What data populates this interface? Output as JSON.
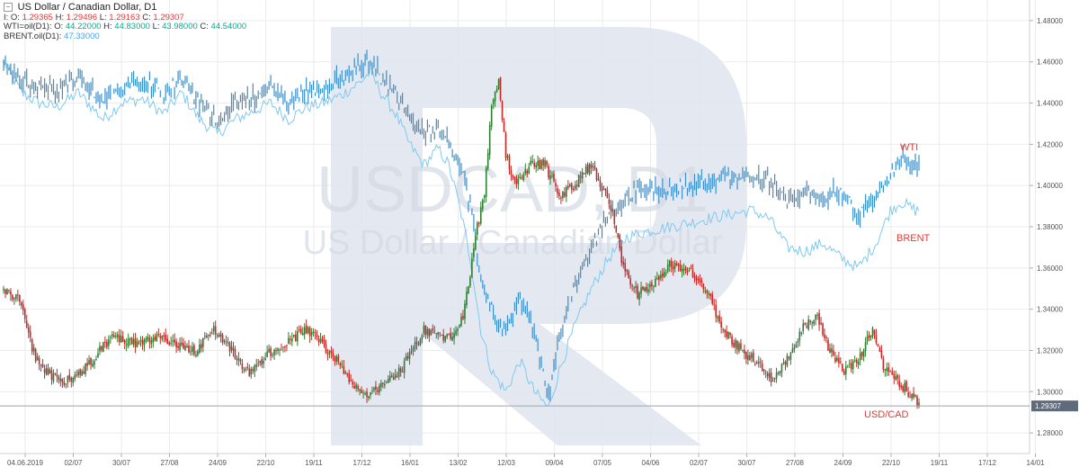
{
  "legend": {
    "collapse_symbol": "−",
    "title": "US Dollar / Canadian Dollar,  D1",
    "usdcad": {
      "o_label": "I: O:",
      "o": "1.29365",
      "h_label": "H:",
      "h": "1.29496",
      "l_label": "L:",
      "l": "1.29163",
      "c_label": "C:",
      "c": "1.29307"
    },
    "wti": {
      "name": "WTI=oil(D1):",
      "o_label": "O:",
      "o": "44.22000",
      "h_label": "H:",
      "h": "44.83000",
      "l_label": "L:",
      "l": "43.98000",
      "c_label": "C:",
      "c": "44.54000"
    },
    "brent": {
      "name": "BRENT.oil(D1):",
      "value": "47.33000"
    }
  },
  "watermark": {
    "symbol": "USDCAD, D1",
    "name": "US Dollar / Canadian Dollar"
  },
  "colors": {
    "bull": "#2e7d32",
    "bear": "#c62828",
    "wti": "#3c8fc9",
    "brent": "#7fc9f0",
    "label": "#e53935",
    "grid": "#ebebeb",
    "axis_text": "#555555",
    "watermark": "#dde3ee"
  },
  "chart_data": {
    "type": "candlestick",
    "title": "US Dollar / Canadian Dollar, D1",
    "ylim": [
      1.27,
      1.49
    ],
    "yticks": [
      "1.48000",
      "1.46000",
      "1.44000",
      "1.42000",
      "1.40000",
      "1.38000",
      "1.36000",
      "1.34000",
      "1.32000",
      "1.30000",
      "1.28000"
    ],
    "ytick_values": [
      1.48,
      1.46,
      1.44,
      1.42,
      1.4,
      1.38,
      1.36,
      1.34,
      1.32,
      1.3,
      1.28
    ],
    "xticks": [
      "04.06.2019",
      "02/07",
      "30/07",
      "27/08",
      "24/09",
      "22/10",
      "19/11",
      "17/12",
      "16/01",
      "13/02",
      "12/03",
      "09/04",
      "07/05",
      "04/06",
      "02/07",
      "30/07",
      "27/08",
      "24/09",
      "22/10",
      "19/11",
      "17/12",
      "14/01"
    ],
    "last_price": {
      "label": "1.29307",
      "value": 1.29307
    },
    "grid": true,
    "series_labels": {
      "wti": "WTI",
      "brent": "BRENT",
      "usdcad": "USD/CAD"
    },
    "usdcad_keypoints": [
      [
        0,
        1.349
      ],
      [
        8,
        1.346
      ],
      [
        18,
        1.316
      ],
      [
        30,
        1.305
      ],
      [
        40,
        1.306
      ],
      [
        52,
        1.318
      ],
      [
        62,
        1.327
      ],
      [
        75,
        1.323
      ],
      [
        88,
        1.326
      ],
      [
        98,
        1.322
      ],
      [
        108,
        1.32
      ],
      [
        118,
        1.33
      ],
      [
        128,
        1.32
      ],
      [
        138,
        1.308
      ],
      [
        148,
        1.318
      ],
      [
        160,
        1.324
      ],
      [
        170,
        1.33
      ],
      [
        180,
        1.322
      ],
      [
        190,
        1.312
      ],
      [
        200,
        1.3
      ],
      [
        206,
        1.298
      ],
      [
        214,
        1.303
      ],
      [
        224,
        1.312
      ],
      [
        236,
        1.33
      ],
      [
        248,
        1.325
      ],
      [
        258,
        1.335
      ],
      [
        266,
        1.38
      ],
      [
        270,
        1.395
      ],
      [
        274,
        1.44
      ],
      [
        278,
        1.45
      ],
      [
        282,
        1.415
      ],
      [
        288,
        1.4
      ],
      [
        296,
        1.41
      ],
      [
        304,
        1.41
      ],
      [
        312,
        1.395
      ],
      [
        320,
        1.4
      ],
      [
        330,
        1.41
      ],
      [
        342,
        1.388
      ],
      [
        348,
        1.36
      ],
      [
        356,
        1.347
      ],
      [
        364,
        1.352
      ],
      [
        374,
        1.362
      ],
      [
        384,
        1.36
      ],
      [
        394,
        1.35
      ],
      [
        404,
        1.33
      ],
      [
        414,
        1.32
      ],
      [
        424,
        1.314
      ],
      [
        432,
        1.305
      ],
      [
        440,
        1.316
      ],
      [
        448,
        1.33
      ],
      [
        456,
        1.338
      ],
      [
        464,
        1.32
      ],
      [
        472,
        1.31
      ],
      [
        480,
        1.316
      ],
      [
        488,
        1.33
      ],
      [
        494,
        1.312
      ],
      [
        500,
        1.306
      ],
      [
        506,
        1.302
      ],
      [
        514,
        1.294
      ]
    ],
    "wti_keypoints": [
      [
        0,
        1.46
      ],
      [
        10,
        1.45
      ],
      [
        20,
        1.448
      ],
      [
        30,
        1.445
      ],
      [
        42,
        1.452
      ],
      [
        56,
        1.44
      ],
      [
        66,
        1.448
      ],
      [
        78,
        1.452
      ],
      [
        90,
        1.445
      ],
      [
        100,
        1.452
      ],
      [
        110,
        1.44
      ],
      [
        120,
        1.432
      ],
      [
        130,
        1.44
      ],
      [
        140,
        1.442
      ],
      [
        150,
        1.448
      ],
      [
        160,
        1.44
      ],
      [
        170,
        1.446
      ],
      [
        180,
        1.448
      ],
      [
        190,
        1.452
      ],
      [
        200,
        1.458
      ],
      [
        206,
        1.462
      ],
      [
        212,
        1.452
      ],
      [
        220,
        1.445
      ],
      [
        228,
        1.432
      ],
      [
        236,
        1.425
      ],
      [
        244,
        1.43
      ],
      [
        250,
        1.42
      ],
      [
        256,
        1.412
      ],
      [
        262,
        1.39
      ],
      [
        268,
        1.355
      ],
      [
        274,
        1.34
      ],
      [
        282,
        1.33
      ],
      [
        290,
        1.345
      ],
      [
        298,
        1.33
      ],
      [
        306,
        1.298
      ],
      [
        312,
        1.325
      ],
      [
        320,
        1.35
      ],
      [
        330,
        1.37
      ],
      [
        340,
        1.385
      ],
      [
        350,
        1.395
      ],
      [
        362,
        1.398
      ],
      [
        374,
        1.398
      ],
      [
        386,
        1.4
      ],
      [
        396,
        1.402
      ],
      [
        408,
        1.404
      ],
      [
        420,
        1.405
      ],
      [
        430,
        1.402
      ],
      [
        440,
        1.392
      ],
      [
        450,
        1.396
      ],
      [
        460,
        1.394
      ],
      [
        470,
        1.398
      ],
      [
        480,
        1.385
      ],
      [
        490,
        1.395
      ],
      [
        498,
        1.405
      ],
      [
        504,
        1.413
      ],
      [
        512,
        1.41
      ]
    ],
    "brent_keypoints": [
      [
        0,
        1.46
      ],
      [
        10,
        1.445
      ],
      [
        20,
        1.44
      ],
      [
        30,
        1.438
      ],
      [
        42,
        1.445
      ],
      [
        56,
        1.432
      ],
      [
        66,
        1.44
      ],
      [
        78,
        1.442
      ],
      [
        90,
        1.435
      ],
      [
        100,
        1.445
      ],
      [
        110,
        1.432
      ],
      [
        120,
        1.425
      ],
      [
        130,
        1.432
      ],
      [
        140,
        1.436
      ],
      [
        150,
        1.44
      ],
      [
        160,
        1.432
      ],
      [
        170,
        1.438
      ],
      [
        180,
        1.44
      ],
      [
        190,
        1.444
      ],
      [
        200,
        1.45
      ],
      [
        206,
        1.455
      ],
      [
        212,
        1.445
      ],
      [
        220,
        1.435
      ],
      [
        228,
        1.42
      ],
      [
        236,
        1.41
      ],
      [
        244,
        1.418
      ],
      [
        250,
        1.41
      ],
      [
        256,
        1.39
      ],
      [
        262,
        1.365
      ],
      [
        268,
        1.33
      ],
      [
        274,
        1.31
      ],
      [
        282,
        1.3
      ],
      [
        290,
        1.315
      ],
      [
        298,
        1.3
      ],
      [
        306,
        1.292
      ],
      [
        312,
        1.31
      ],
      [
        320,
        1.33
      ],
      [
        330,
        1.35
      ],
      [
        340,
        1.365
      ],
      [
        350,
        1.375
      ],
      [
        362,
        1.378
      ],
      [
        374,
        1.38
      ],
      [
        386,
        1.382
      ],
      [
        396,
        1.384
      ],
      [
        408,
        1.386
      ],
      [
        420,
        1.388
      ],
      [
        430,
        1.384
      ],
      [
        440,
        1.37
      ],
      [
        450,
        1.368
      ],
      [
        460,
        1.372
      ],
      [
        470,
        1.365
      ],
      [
        480,
        1.36
      ],
      [
        490,
        1.372
      ],
      [
        498,
        1.388
      ],
      [
        504,
        1.392
      ],
      [
        512,
        1.388
      ]
    ],
    "bar_count": 515
  }
}
